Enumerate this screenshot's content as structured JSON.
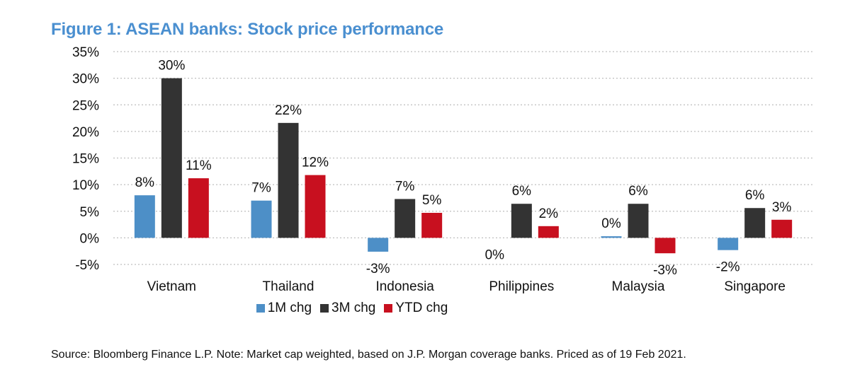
{
  "title": "Figure 1: ASEAN banks: Stock price performance",
  "source": "Source: Bloomberg Finance L.P. Note: Market cap weighted, based on J.P. Morgan coverage banks. Priced as of 19 Feb 2021.",
  "colors": {
    "title": "#4a8fd0",
    "series_1m": "#4d8fc7",
    "series_3m": "#333333",
    "series_ytd": "#c8101f",
    "grid": "#bfbfbf"
  },
  "chart_data": {
    "type": "bar",
    "title": "Figure 1: ASEAN banks: Stock price performance",
    "xlabel": "",
    "ylabel": "",
    "ylim": [
      -5,
      35
    ],
    "yticks": [
      35,
      30,
      25,
      20,
      15,
      10,
      5,
      0,
      -5
    ],
    "ytick_labels": [
      "35%",
      "30%",
      "25%",
      "20%",
      "15%",
      "10%",
      "5%",
      "0%",
      "-5%"
    ],
    "grid": true,
    "legend_position": "bottom-center",
    "categories": [
      "Vietnam",
      "Thailand",
      "Indonesia",
      "Philippines",
      "Malaysia",
      "Singapore"
    ],
    "series": [
      {
        "name": "1M chg",
        "values": [
          8,
          7,
          -2.6,
          0,
          0.3,
          -2.3
        ],
        "labels": [
          "8%",
          "7%",
          "-3%",
          "0%",
          "0%",
          "-2%"
        ]
      },
      {
        "name": "3M chg",
        "values": [
          30,
          21.6,
          7.3,
          6.4,
          6.4,
          5.6
        ],
        "labels": [
          "30%",
          "22%",
          "7%",
          "6%",
          "6%",
          "6%"
        ]
      },
      {
        "name": "YTD chg",
        "values": [
          11.2,
          11.8,
          4.7,
          2.2,
          -2.9,
          3.4
        ],
        "labels": [
          "11%",
          "12%",
          "5%",
          "2%",
          "-3%",
          "3%"
        ]
      }
    ]
  }
}
